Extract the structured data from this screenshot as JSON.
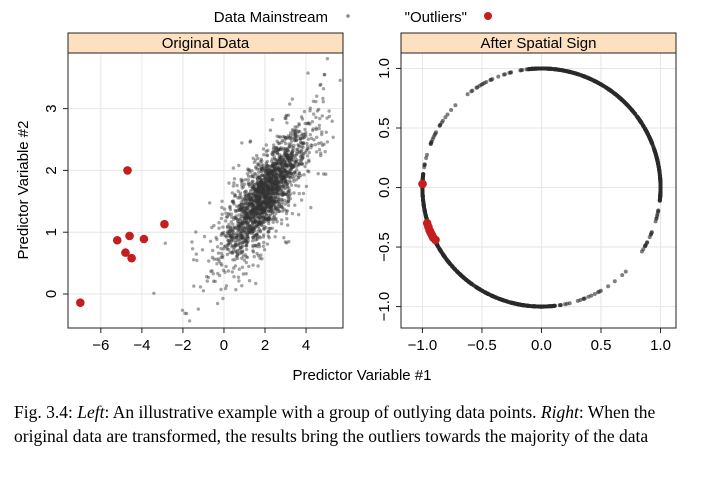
{
  "legend": {
    "mainstream_label": "Data Mainstream",
    "outliers_label": "\"Outliers\"",
    "mainstream_color": "#555555",
    "outliers_color": "#c41e1e"
  },
  "xlabel": "Predictor Variable #1",
  "caption": {
    "fig_label": "Fig. 3.4: ",
    "left_label": "Left",
    "left_text": ": An illustrative example with a group of outlying data points.",
    "right_label": "Right",
    "right_text": ": When the original data are transformed, the results bring the outliers towards the majority of the data"
  },
  "chart_data": [
    {
      "type": "scatter",
      "title": "Original Data",
      "xlabel": "Predictor Variable #1",
      "ylabel": "Predictor Variable #2",
      "xlim": [
        -7.6,
        5.8
      ],
      "ylim": [
        -0.55,
        3.9
      ],
      "xticks": [
        -6,
        -4,
        -2,
        0,
        2,
        4
      ],
      "yticks": [
        0,
        1,
        2,
        3
      ],
      "xtick_labels": [
        "−6",
        "−4",
        "−2",
        "0",
        "2",
        "4"
      ],
      "ytick_labels": [
        "0",
        "1",
        "2",
        "3"
      ],
      "grid": true,
      "header_color": "#fde0c0",
      "mainstream": {
        "name": "Data Mainstream",
        "description": "dense elongated cloud, centred near (2.0, 1.6), correlation ~0.8",
        "center": [
          2.0,
          1.6
        ],
        "spread": [
          1.0,
          0.5
        ],
        "correlation": 0.8,
        "approx_count": 2000
      },
      "outliers": {
        "name": "\"Outliers\"",
        "points": [
          [
            -4.7,
            2.0
          ],
          [
            -2.9,
            1.13
          ],
          [
            -5.2,
            0.87
          ],
          [
            -4.6,
            0.94
          ],
          [
            -3.9,
            0.89
          ],
          [
            -4.8,
            0.67
          ],
          [
            -4.5,
            0.58
          ],
          [
            -7.0,
            -0.14
          ]
        ]
      }
    },
    {
      "type": "scatter",
      "title": "After Spatial Sign",
      "xlim": [
        -1.18,
        1.13
      ],
      "ylim": [
        -1.18,
        1.13
      ],
      "xticks": [
        -1.0,
        -0.5,
        0.0,
        0.5,
        1.0
      ],
      "yticks": [
        -1.0,
        -0.5,
        0.0,
        0.5,
        1.0
      ],
      "xtick_labels": [
        "−1.0",
        "−0.5",
        "0.0",
        "0.5",
        "1.0"
      ],
      "ytick_labels": [
        "−1.0",
        "−0.5",
        "0.0",
        "0.5",
        "1.0"
      ],
      "grid": true,
      "header_color": "#fde0c0",
      "mainstream": {
        "name": "Data Mainstream",
        "description": "points on the unit circle"
      },
      "outliers": {
        "name": "\"Outliers\"",
        "points": [
          [
            -0.999,
            0.03
          ],
          [
            -0.96,
            -0.3
          ],
          [
            -0.95,
            -0.33
          ],
          [
            -0.94,
            -0.36
          ],
          [
            -0.93,
            -0.38
          ],
          [
            -0.92,
            -0.4
          ],
          [
            -0.91,
            -0.42
          ],
          [
            -0.89,
            -0.44
          ]
        ]
      }
    }
  ]
}
